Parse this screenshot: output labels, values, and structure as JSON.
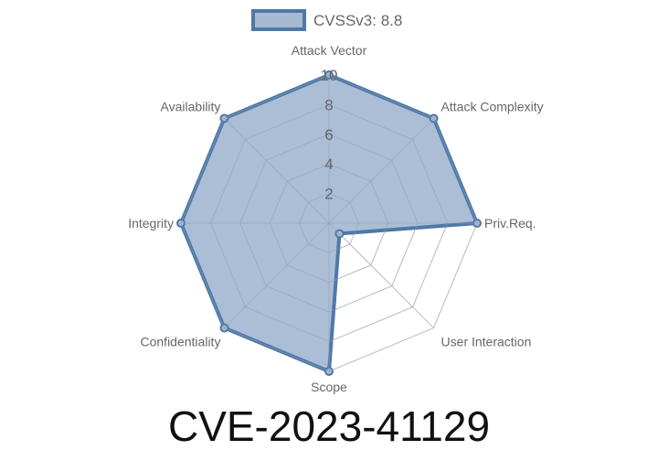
{
  "chart_data": {
    "type": "radar",
    "title": "CVE-2023-41129",
    "categories": [
      "Attack Vector",
      "Attack Complexity",
      "Priv.Req.",
      "User Interaction",
      "Scope",
      "Confidentiality",
      "Integrity",
      "Availability"
    ],
    "series": [
      {
        "name": "CVSSv3: 8.8",
        "values": [
          10,
          10,
          10,
          1,
          10,
          10,
          10,
          10
        ]
      }
    ],
    "rlim": [
      0,
      10
    ],
    "ticks": [
      "2",
      "4",
      "6",
      "8",
      "10"
    ],
    "grid": true,
    "legend": "top",
    "colors": {
      "line": "#4e79a7",
      "fill": "#a6bad4",
      "grid": "#dddddd"
    }
  }
}
